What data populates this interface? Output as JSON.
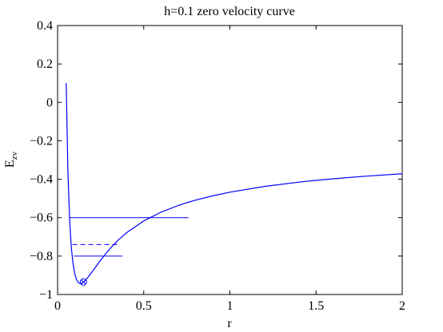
{
  "chart_data": {
    "type": "line",
    "title": "h=0.1 zero velocity curve",
    "xlabel": "r",
    "ylabel": "E",
    "ylabel_subscript": "zv",
    "xlim": [
      0,
      2
    ],
    "ylim": [
      -1,
      0.4
    ],
    "xticks": [
      0,
      0.5,
      1,
      1.5,
      2
    ],
    "xtick_labels": [
      "0",
      "0.5",
      "1",
      "1.5",
      "2"
    ],
    "yticks": [
      -1,
      -0.8,
      -0.6,
      -0.4,
      -0.2,
      0,
      0.2,
      0.4
    ],
    "ytick_labels": [
      "−1",
      "−0.8",
      "−0.6",
      "−0.4",
      "−0.2",
      "0",
      "0.2",
      "0.4"
    ],
    "grid": false,
    "line_color": "#0000ff",
    "series": [
      {
        "kind": "curve",
        "style": "solid",
        "x": [
          0.05,
          0.06,
          0.07,
          0.08,
          0.09,
          0.1,
          0.11,
          0.12,
          0.13,
          0.14,
          0.15,
          0.16,
          0.18,
          0.2,
          0.22,
          0.25,
          0.28,
          0.3,
          0.35,
          0.4,
          0.5,
          0.6,
          0.7,
          0.75,
          0.8,
          0.9,
          1.0,
          1.2,
          1.4,
          1.5,
          1.6,
          1.8,
          2.0
        ],
        "y": [
          0.1,
          -0.3611,
          -0.6122,
          -0.7569,
          -0.8426,
          -0.8935,
          -0.9223,
          -0.9372,
          -0.9424,
          -0.9414,
          -0.9356,
          -0.9272,
          -0.9059,
          -0.8822,
          -0.8576,
          -0.8212,
          -0.7869,
          -0.7656,
          -0.7184,
          -0.6788,
          -0.6171,
          -0.5717,
          -0.5368,
          -0.5222,
          -0.5091,
          -0.4864,
          -0.4674,
          -0.4375,
          -0.4151,
          -0.4059,
          -0.3976,
          -0.3834,
          -0.3716
        ]
      },
      {
        "kind": "level",
        "style": "solid",
        "y": -0.6,
        "x_range": [
          0.07,
          0.76
        ]
      },
      {
        "kind": "level",
        "style": "dashed",
        "y": -0.74,
        "x_range": [
          0.086,
          0.355
        ]
      },
      {
        "kind": "level",
        "style": "solid",
        "y": -0.8,
        "x_range": [
          0.095,
          0.375
        ]
      }
    ],
    "marker": {
      "shape": "circle",
      "x": 0.15,
      "y": -0.935
    }
  }
}
